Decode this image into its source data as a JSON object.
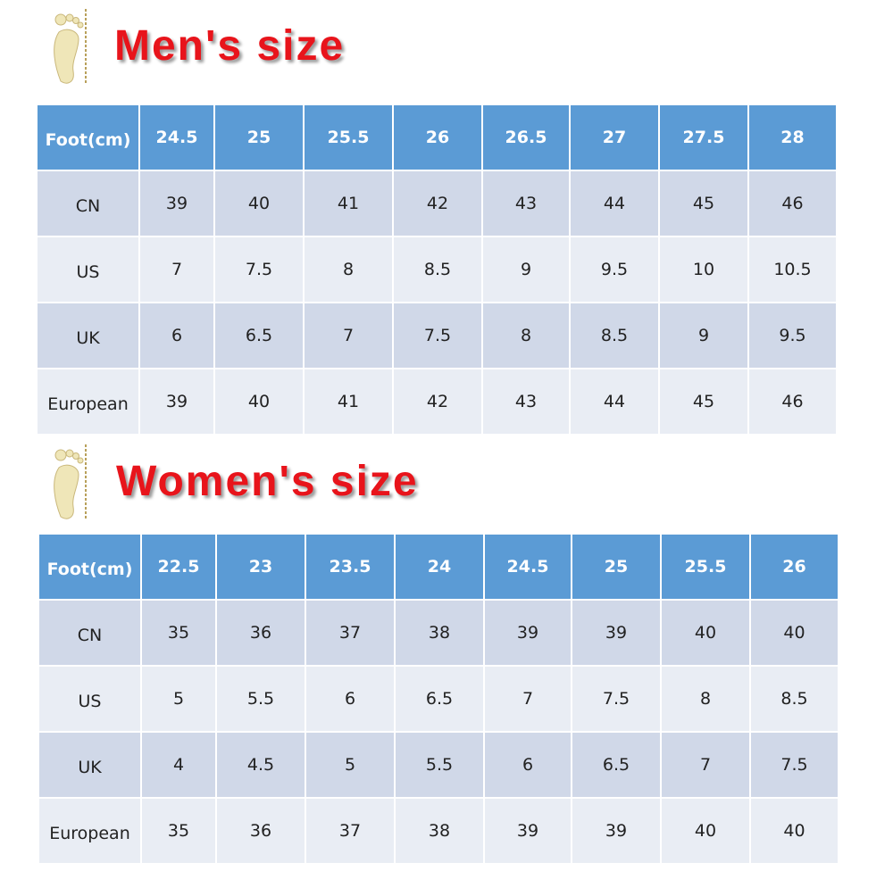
{
  "sections": [
    {
      "title": "Men's size",
      "table": {
        "header": [
          "Foot(cm)",
          "24.5",
          "25",
          "25.5",
          "26",
          "26.5",
          "27",
          "27.5",
          "28"
        ],
        "rows": [
          [
            "CN",
            "39",
            "40",
            "41",
            "42",
            "43",
            "44",
            "45",
            "46"
          ],
          [
            "US",
            "7",
            "7.5",
            "8",
            "8.5",
            "9",
            "9.5",
            "10",
            "10.5"
          ],
          [
            "UK",
            "6",
            "6.5",
            "7",
            "7.5",
            "8",
            "8.5",
            "9",
            "9.5"
          ],
          [
            "European",
            "39",
            "40",
            "41",
            "42",
            "43",
            "44",
            "45",
            "46"
          ]
        ]
      }
    },
    {
      "title": "Women's size",
      "table": {
        "header": [
          "Foot(cm)",
          "22.5",
          "23",
          "23.5",
          "24",
          "24.5",
          "25",
          "25.5",
          "26"
        ],
        "rows": [
          [
            "CN",
            "35",
            "36",
            "37",
            "38",
            "39",
            "39",
            "40",
            "40"
          ],
          [
            "US",
            "5",
            "5.5",
            "6",
            "6.5",
            "7",
            "7.5",
            "8",
            "8.5"
          ],
          [
            "UK",
            "4",
            "4.5",
            "5",
            "5.5",
            "6",
            "6.5",
            "7",
            "7.5"
          ],
          [
            "European",
            "35",
            "36",
            "37",
            "38",
            "39",
            "39",
            "40",
            "40"
          ]
        ]
      }
    }
  ]
}
